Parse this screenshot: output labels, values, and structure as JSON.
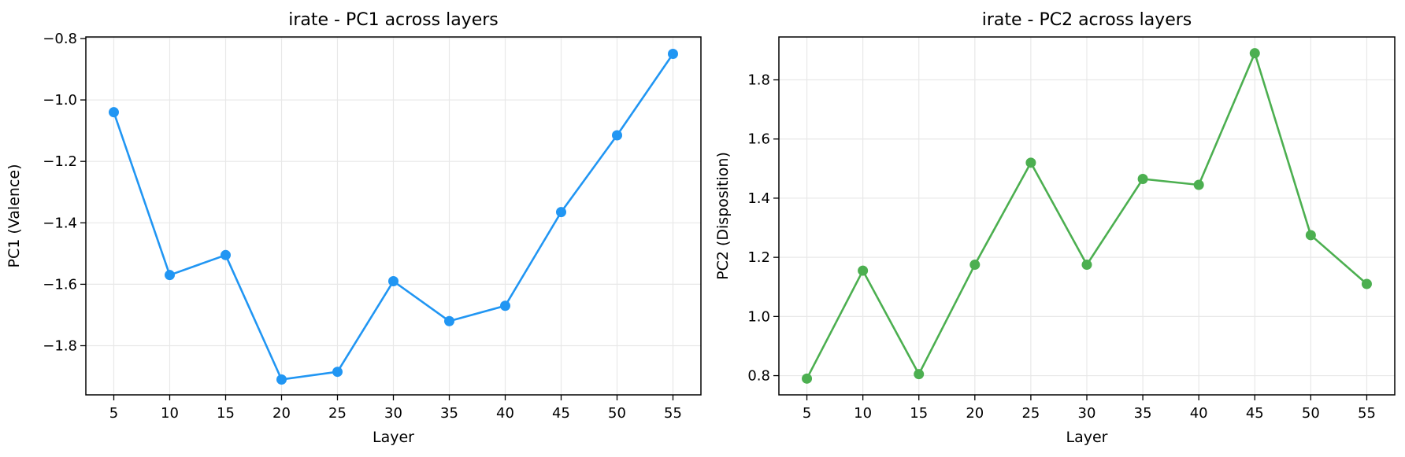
{
  "chart_data": [
    {
      "type": "line",
      "title": "irate - PC1 across layers",
      "xlabel": "Layer",
      "ylabel": "PC1 (Valence)",
      "x": [
        5,
        10,
        15,
        20,
        25,
        30,
        35,
        40,
        45,
        50,
        55
      ],
      "xticks": [
        "5",
        "10",
        "15",
        "20",
        "25",
        "30",
        "35",
        "40",
        "45",
        "50",
        "55"
      ],
      "yticks": [
        -1.8,
        -1.6,
        -1.4,
        -1.2,
        -1.0,
        -0.8
      ],
      "ytick_labels": [
        "−1.8",
        "−1.6",
        "−1.4",
        "−1.2",
        "−1.0",
        "−0.8"
      ],
      "xlim": [
        2.5,
        57.5
      ],
      "ylim": [
        -1.96,
        -0.795
      ],
      "grid": true,
      "series": [
        {
          "color": "#2196F3",
          "values": [
            -1.04,
            -1.57,
            -1.505,
            -1.91,
            -1.885,
            -1.59,
            -1.72,
            -1.67,
            -1.365,
            -1.115,
            -0.85
          ]
        }
      ]
    },
    {
      "type": "line",
      "title": "irate - PC2 across layers",
      "xlabel": "Layer",
      "ylabel": "PC2 (Disposition)",
      "x": [
        5,
        10,
        15,
        20,
        25,
        30,
        35,
        40,
        45,
        50,
        55
      ],
      "xticks": [
        "5",
        "10",
        "15",
        "20",
        "25",
        "30",
        "35",
        "40",
        "45",
        "50",
        "55"
      ],
      "yticks": [
        0.8,
        1.0,
        1.2,
        1.4,
        1.6,
        1.8
      ],
      "ytick_labels": [
        "0.8",
        "1.0",
        "1.2",
        "1.4",
        "1.6",
        "1.8"
      ],
      "xlim": [
        2.5,
        57.5
      ],
      "ylim": [
        0.735,
        1.945
      ],
      "grid": true,
      "series": [
        {
          "color": "#4CAF50",
          "values": [
            0.79,
            1.155,
            0.805,
            1.175,
            1.52,
            1.175,
            1.465,
            1.445,
            1.89,
            1.275,
            1.11
          ]
        }
      ]
    }
  ]
}
